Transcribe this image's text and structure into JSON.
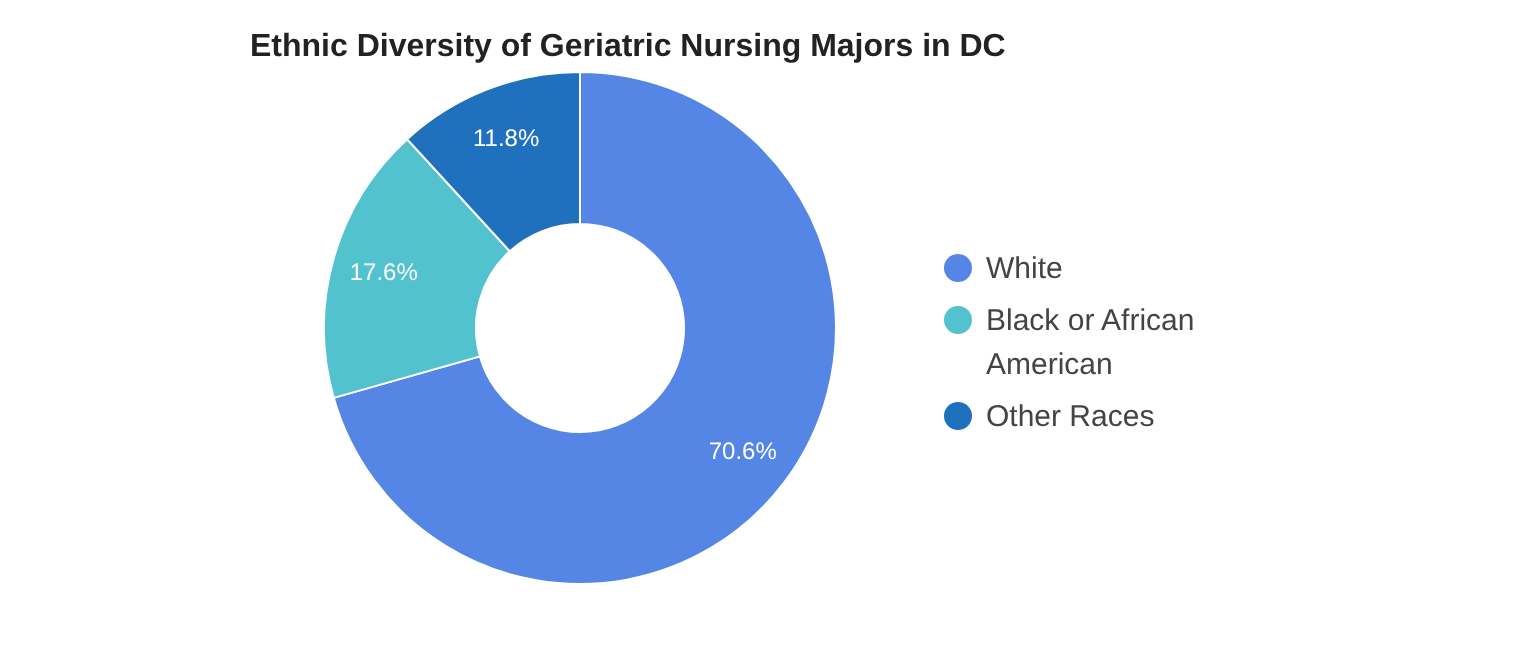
{
  "chart_data": {
    "type": "donut",
    "title": "Ethnic Diversity of Geriatric Nursing Majors in DC",
    "categories": [
      "White",
      "Black or African American",
      "Other Races"
    ],
    "values": [
      70.6,
      17.6,
      11.8
    ],
    "colors": [
      "#5586e6",
      "#52c2cf",
      "#2071bd"
    ],
    "value_labels": [
      "70.6%",
      "17.6%",
      "11.8%"
    ],
    "legend": "right"
  }
}
